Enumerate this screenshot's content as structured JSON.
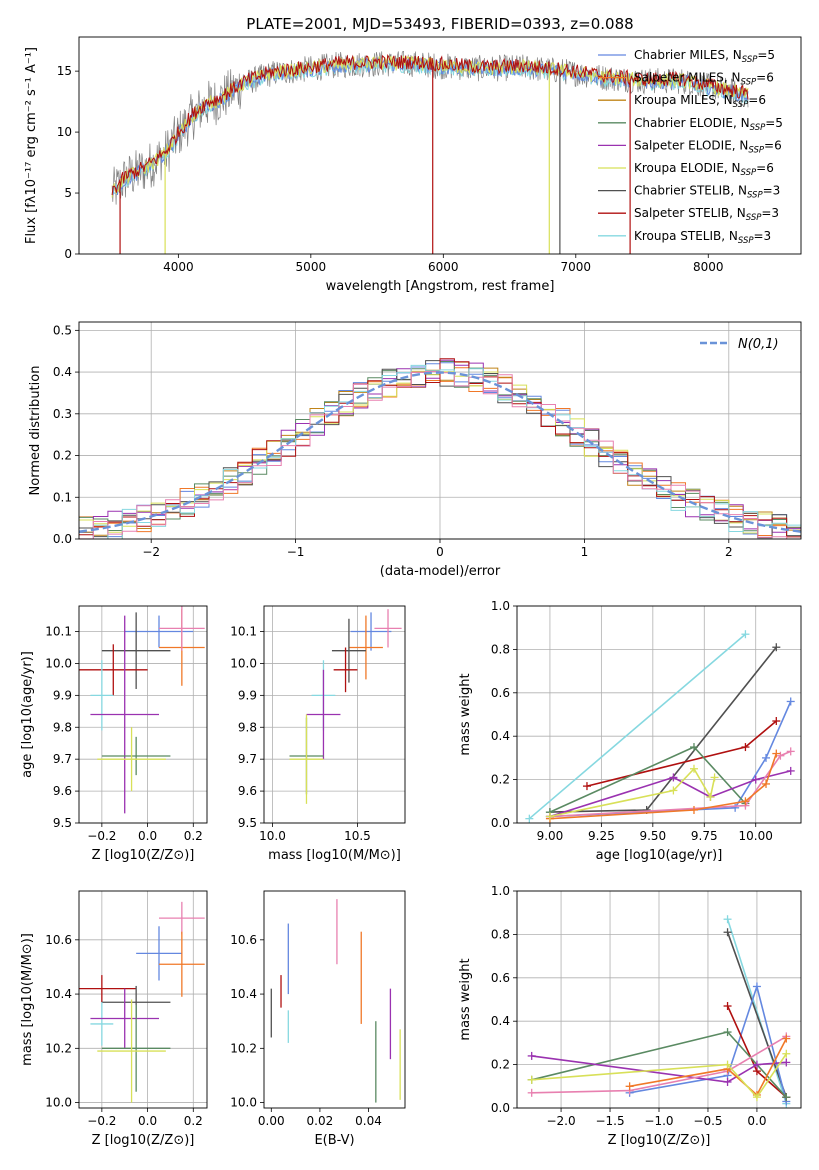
{
  "figure": {
    "title": "PLATE=2001, MJD=53493, FIBERID=0393, z=0.088"
  },
  "colors": {
    "Chabrier MILES": "#6488e0",
    "Salpeter MILES": "#f07828",
    "Kroupa MILES": "#c08418",
    "Chabrier ELODIE": "#5a8a62",
    "Salpeter ELODIE": "#9a32b0",
    "Kroupa ELODIE": "#d8e058",
    "Chabrier STELIB": "#505050",
    "Salpeter STELIB": "#b01010",
    "Kroupa STELIB": "#86d8e0",
    "pink": "#e880b0",
    "green": "#a0d820",
    "spectrum_data": "#808080"
  },
  "chart_data": [
    {
      "id": "spectrum",
      "type": "line",
      "xlabel": "wavelength [Angstrom, rest frame]",
      "ylabel": "Flux [fλ10⁻¹⁷ erg cm⁻² s⁻¹ A⁻¹]",
      "xlim": [
        3250,
        8700
      ],
      "ylim": [
        0,
        17.8
      ],
      "xticks": [
        4000,
        5000,
        6000,
        7000,
        8000
      ],
      "yticks": [
        0,
        5,
        10,
        15
      ],
      "grid": false,
      "legend_position": "right",
      "legend": [
        {
          "label": "Chabrier MILES, N",
          "sub": "SSP",
          "n": "=5"
        },
        {
          "label": "Salpeter MILES, N",
          "sub": "SSP",
          "n": "=6"
        },
        {
          "label": "Kroupa MILES, N",
          "sub": "SSP",
          "n": "=6"
        },
        {
          "label": "Chabrier ELODIE, N",
          "sub": "SSP",
          "n": "=5"
        },
        {
          "label": "Salpeter ELODIE, N",
          "sub": "SSP",
          "n": "=6"
        },
        {
          "label": "Kroupa ELODIE, N",
          "sub": "SSP",
          "n": "=6"
        },
        {
          "label": "Chabrier STELIB, N",
          "sub": "SSP",
          "n": "=3"
        },
        {
          "label": "Salpeter STELIB, N",
          "sub": "SSP",
          "n": "=3"
        },
        {
          "label": "Kroupa STELIB, N",
          "sub": "SSP",
          "n": "=3"
        }
      ],
      "continuum": [
        [
          3500,
          5.0
        ],
        [
          3600,
          6.2
        ],
        [
          3750,
          7.0
        ],
        [
          3900,
          8.2
        ],
        [
          4000,
          9.8
        ],
        [
          4100,
          11.2
        ],
        [
          4200,
          12.2
        ],
        [
          4300,
          12.6
        ],
        [
          4500,
          14.0
        ],
        [
          4700,
          14.8
        ],
        [
          5000,
          15.2
        ],
        [
          5200,
          15.5
        ],
        [
          5500,
          15.6
        ],
        [
          5800,
          15.6
        ],
        [
          6000,
          15.4
        ],
        [
          6300,
          15.2
        ],
        [
          6600,
          15.3
        ],
        [
          6900,
          15.0
        ],
        [
          7200,
          14.5
        ],
        [
          7500,
          14.2
        ],
        [
          7800,
          14.2
        ],
        [
          8100,
          13.5
        ],
        [
          8300,
          13.0
        ]
      ]
    },
    {
      "id": "residual-hist",
      "type": "histogram",
      "xlabel": "(data-model)/error",
      "ylabel": "Normed distribution",
      "xlim": [
        -2.5,
        2.5
      ],
      "ylim": [
        0,
        0.52
      ],
      "xticks": [
        -2,
        -1,
        0,
        1,
        2
      ],
      "yticks": [
        0.0,
        0.1,
        0.2,
        0.3,
        0.4,
        0.5
      ],
      "grid": true,
      "legend_position": "top-right",
      "reference_label": "N(0,1)"
    },
    {
      "id": "age-vs-Z",
      "type": "errorbar",
      "xlabel": "Z [log10(Z/Z⊙)]",
      "ylabel": "age  [log10(age/yr)]",
      "xlim": [
        -0.3,
        0.26
      ],
      "ylim": [
        9.5,
        10.18
      ],
      "xticks": [
        -0.2,
        0.0,
        0.2
      ],
      "yticks": [
        9.5,
        9.6,
        9.7,
        9.8,
        9.9,
        10.0,
        10.1
      ],
      "grid": true,
      "points": [
        {
          "x": 0.05,
          "y": 10.1,
          "xerr": 0.15,
          "yerr": 0.05,
          "color": "Chabrier MILES"
        },
        {
          "x": 0.15,
          "y": 10.05,
          "xerr": 0.1,
          "yerr": 0.12,
          "color": "Salpeter MILES"
        },
        {
          "x": 0.15,
          "y": 10.11,
          "xerr": 0.1,
          "yerr": 0.07,
          "color": "pink"
        },
        {
          "x": -0.05,
          "y": 10.04,
          "xerr": 0.15,
          "yerr": 0.12,
          "color": "Chabrier STELIB"
        },
        {
          "x": -0.15,
          "y": 9.98,
          "xerr": 0.15,
          "yerr": 0.08,
          "color": "Salpeter STELIB"
        },
        {
          "x": -0.2,
          "y": 9.9,
          "xerr": 0.05,
          "yerr": 0.11,
          "color": "Kroupa STELIB"
        },
        {
          "x": -0.1,
          "y": 9.84,
          "xerr": 0.15,
          "yerr": 0.31,
          "color": "Salpeter ELODIE"
        },
        {
          "x": -0.05,
          "y": 9.71,
          "xerr": 0.15,
          "yerr": 0.06,
          "color": "Chabrier ELODIE"
        },
        {
          "x": -0.07,
          "y": 9.7,
          "xerr": 0.15,
          "yerr": 0.1,
          "color": "Kroupa ELODIE"
        }
      ]
    },
    {
      "id": "age-vs-mass",
      "type": "errorbar",
      "xlabel": "mass [log10(M/M⊙)]",
      "ylabel": "",
      "xlim": [
        9.95,
        10.78
      ],
      "ylim": [
        9.5,
        10.18
      ],
      "xticks": [
        10.0,
        10.5
      ],
      "yticks": [
        9.5,
        9.6,
        9.7,
        9.8,
        9.9,
        10.0,
        10.1
      ],
      "grid": true,
      "points": [
        {
          "x": 10.58,
          "y": 10.1,
          "xerr": 0.12,
          "yerr": 0.06,
          "color": "Chabrier MILES"
        },
        {
          "x": 10.68,
          "y": 10.11,
          "xerr": 0.08,
          "yerr": 0.06,
          "color": "pink"
        },
        {
          "x": 10.55,
          "y": 10.05,
          "xerr": 0.1,
          "yerr": 0.1,
          "color": "Salpeter MILES"
        },
        {
          "x": 10.45,
          "y": 10.04,
          "xerr": 0.1,
          "yerr": 0.1,
          "color": "Chabrier STELIB"
        },
        {
          "x": 10.43,
          "y": 9.98,
          "xerr": 0.07,
          "yerr": 0.07,
          "color": "Salpeter STELIB"
        },
        {
          "x": 10.3,
          "y": 9.9,
          "xerr": 0.07,
          "yerr": 0.11,
          "color": "Kroupa STELIB"
        },
        {
          "x": 10.3,
          "y": 9.84,
          "xerr": 0.1,
          "yerr": 0.14,
          "color": "Salpeter ELODIE"
        },
        {
          "x": 10.2,
          "y": 9.71,
          "xerr": 0.1,
          "yerr": 0.12,
          "color": "Chabrier ELODIE"
        },
        {
          "x": 10.2,
          "y": 9.7,
          "xerr": 0.1,
          "yerr": 0.14,
          "color": "Kroupa ELODIE"
        }
      ]
    },
    {
      "id": "weight-vs-age",
      "type": "line",
      "xlabel": "age  [log10(age/yr)]",
      "ylabel": "mass weight",
      "xlim": [
        8.84,
        10.22
      ],
      "ylim": [
        0,
        1.0
      ],
      "xticks": [
        9.0,
        9.25,
        9.5,
        9.75,
        10.0
      ],
      "yticks": [
        0.0,
        0.2,
        0.4,
        0.6,
        0.8,
        1.0
      ],
      "grid": true,
      "series": [
        {
          "color": "Kroupa STELIB",
          "points": [
            [
              8.9,
              0.02
            ],
            [
              9.95,
              0.87
            ]
          ]
        },
        {
          "color": "Chabrier STELIB",
          "points": [
            [
              9.0,
              0.05
            ],
            [
              9.47,
              0.06
            ],
            [
              10.1,
              0.81
            ]
          ]
        },
        {
          "color": "Chabrier MILES",
          "points": [
            [
              9.0,
              0.03
            ],
            [
              9.9,
              0.07
            ],
            [
              10.05,
              0.3
            ],
            [
              10.17,
              0.56
            ]
          ]
        },
        {
          "color": "Salpeter STELIB",
          "points": [
            [
              9.18,
              0.17
            ],
            [
              9.95,
              0.35
            ],
            [
              10.1,
              0.47
            ]
          ]
        },
        {
          "color": "Chabrier ELODIE",
          "points": [
            [
              9.0,
              0.05
            ],
            [
              9.7,
              0.35
            ],
            [
              9.95,
              0.09
            ]
          ]
        },
        {
          "color": "Salpeter ELODIE",
          "points": [
            [
              9.0,
              0.03
            ],
            [
              9.6,
              0.21
            ],
            [
              9.78,
              0.12
            ],
            [
              10.0,
              0.2
            ],
            [
              10.17,
              0.24
            ]
          ]
        },
        {
          "color": "pink",
          "points": [
            [
              9.0,
              0.03
            ],
            [
              9.95,
              0.08
            ],
            [
              10.12,
              0.31
            ],
            [
              10.17,
              0.33
            ]
          ]
        },
        {
          "color": "Salpeter MILES",
          "points": [
            [
              9.0,
              0.02
            ],
            [
              9.7,
              0.06
            ],
            [
              9.95,
              0.1
            ],
            [
              10.05,
              0.18
            ],
            [
              10.1,
              0.32
            ]
          ]
        },
        {
          "color": "Kroupa ELODIE",
          "points": [
            [
              9.0,
              0.03
            ],
            [
              9.6,
              0.15
            ],
            [
              9.7,
              0.25
            ],
            [
              9.78,
              0.12
            ],
            [
              9.8,
              0.21
            ]
          ]
        }
      ]
    },
    {
      "id": "mass-vs-Z",
      "type": "errorbar",
      "xlabel": "Z [log10(Z/Z⊙)]",
      "ylabel": "mass [log10(M/M⊙)]",
      "xlim": [
        -0.3,
        0.26
      ],
      "ylim": [
        9.98,
        10.78
      ],
      "xticks": [
        -0.2,
        0.0,
        0.2
      ],
      "yticks": [
        10.0,
        10.2,
        10.4,
        10.6
      ],
      "grid": true,
      "points": [
        {
          "x": 0.15,
          "y": 10.68,
          "xerr": 0.1,
          "yerr": 0.06,
          "color": "pink"
        },
        {
          "x": 0.05,
          "y": 10.55,
          "xerr": 0.1,
          "yerr": 0.1,
          "color": "Chabrier MILES"
        },
        {
          "x": 0.15,
          "y": 10.51,
          "xerr": 0.1,
          "yerr": 0.12,
          "color": "Salpeter MILES"
        },
        {
          "x": -0.2,
          "y": 10.42,
          "xerr": 0.15,
          "yerr": 0.05,
          "color": "Salpeter STELIB"
        },
        {
          "x": -0.05,
          "y": 10.37,
          "xerr": 0.15,
          "yerr": 0.06,
          "color": "Chabrier STELIB"
        },
        {
          "x": -0.2,
          "y": 10.29,
          "xerr": 0.05,
          "yerr": 0.08,
          "color": "Kroupa STELIB"
        },
        {
          "x": -0.1,
          "y": 10.31,
          "xerr": 0.15,
          "yerr": 0.11,
          "color": "Salpeter ELODIE"
        },
        {
          "x": -0.05,
          "y": 10.2,
          "xerr": 0.15,
          "yerr": 0.16,
          "color": "Chabrier ELODIE"
        },
        {
          "x": -0.07,
          "y": 10.19,
          "xerr": 0.15,
          "yerr": 0.19,
          "color": "Kroupa ELODIE"
        }
      ]
    },
    {
      "id": "mass-vs-EBV",
      "type": "errorbar",
      "xlabel": "E(B-V)",
      "ylabel": "",
      "xlim": [
        -0.003,
        0.055
      ],
      "ylim": [
        9.98,
        10.78
      ],
      "xticks": [
        0.0,
        0.02,
        0.04
      ],
      "yticks": [
        10.0,
        10.2,
        10.4,
        10.6
      ],
      "grid": false,
      "points": [
        {
          "x": 0.0,
          "y": 10.33,
          "yerr": 0.09,
          "color": "Chabrier STELIB"
        },
        {
          "x": 0.004,
          "y": 10.41,
          "yerr": 0.06,
          "color": "Salpeter STELIB"
        },
        {
          "x": 0.007,
          "y": 10.53,
          "yerr": 0.13,
          "color": "Chabrier MILES"
        },
        {
          "x": 0.007,
          "y": 10.28,
          "yerr": 0.06,
          "color": "Kroupa STELIB"
        },
        {
          "x": 0.027,
          "y": 10.63,
          "yerr": 0.12,
          "color": "pink"
        },
        {
          "x": 0.037,
          "y": 10.46,
          "yerr": 0.17,
          "color": "Salpeter MILES"
        },
        {
          "x": 0.043,
          "y": 10.15,
          "yerr": 0.15,
          "color": "Chabrier ELODIE"
        },
        {
          "x": 0.049,
          "y": 10.29,
          "yerr": 0.13,
          "color": "Salpeter ELODIE"
        },
        {
          "x": 0.053,
          "y": 10.14,
          "yerr": 0.13,
          "color": "Kroupa ELODIE"
        }
      ]
    },
    {
      "id": "weight-vs-Z",
      "type": "line",
      "xlabel": "Z [log10(Z/Z⊙)]",
      "ylabel": "mass weight",
      "xlim": [
        -2.45,
        0.45
      ],
      "ylim": [
        0,
        1.0
      ],
      "xticks": [
        -2.0,
        -1.5,
        -1.0,
        -0.5,
        0.0
      ],
      "yticks": [
        0.0,
        0.2,
        0.4,
        0.6,
        0.8,
        1.0
      ],
      "grid": true,
      "series": [
        {
          "color": "Kroupa STELIB",
          "points": [
            [
              -0.3,
              0.87
            ],
            [
              0.3,
              0.02
            ]
          ]
        },
        {
          "color": "Chabrier STELIB",
          "points": [
            [
              -0.3,
              0.81
            ],
            [
              0.3,
              0.05
            ]
          ]
        },
        {
          "color": "Chabrier MILES",
          "points": [
            [
              -1.3,
              0.07
            ],
            [
              -0.3,
              0.15
            ],
            [
              0.0,
              0.56
            ],
            [
              0.3,
              0.03
            ]
          ]
        },
        {
          "color": "Salpeter STELIB",
          "points": [
            [
              -0.3,
              0.47
            ],
            [
              0.0,
              0.17
            ],
            [
              0.3,
              0.05
            ]
          ]
        },
        {
          "color": "Chabrier ELODIE",
          "points": [
            [
              -2.3,
              0.13
            ],
            [
              -0.3,
              0.35
            ],
            [
              0.3,
              0.05
            ]
          ]
        },
        {
          "color": "Salpeter ELODIE",
          "points": [
            [
              -2.3,
              0.24
            ],
            [
              -0.3,
              0.12
            ],
            [
              0.0,
              0.2
            ],
            [
              0.3,
              0.21
            ]
          ]
        },
        {
          "color": "pink",
          "points": [
            [
              -2.3,
              0.07
            ],
            [
              -1.3,
              0.08
            ],
            [
              -0.3,
              0.17
            ],
            [
              0.3,
              0.33
            ]
          ]
        },
        {
          "color": "Salpeter MILES",
          "points": [
            [
              -1.3,
              0.1
            ],
            [
              -0.3,
              0.18
            ],
            [
              0.0,
              0.06
            ],
            [
              0.3,
              0.32
            ]
          ]
        },
        {
          "color": "Kroupa ELODIE",
          "points": [
            [
              -2.3,
              0.13
            ],
            [
              -0.3,
              0.2
            ],
            [
              0.0,
              0.05
            ],
            [
              0.3,
              0.25
            ]
          ]
        }
      ]
    }
  ]
}
